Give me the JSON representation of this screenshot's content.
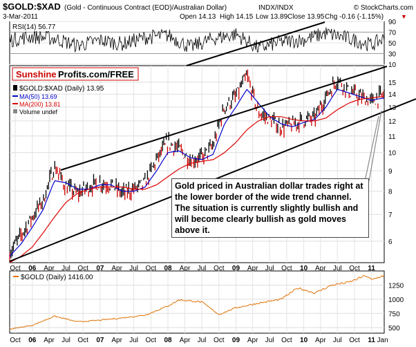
{
  "header": {
    "symbol": "$GOLD:$XAD",
    "description": "(Gold - Continuous Contract (EOD)/Australian Dollar)",
    "exchange": "INDX/INDX",
    "brand": "© StockCharts.com",
    "date": "3-Mar-2011",
    "open": "Open 14.13",
    "high": "High 14.15",
    "low": "Low 13.89",
    "close": "Close 13.95",
    "chg": "Chg -0.16 (-1.15%)",
    "chg_arrow": "▼"
  },
  "rsi_panel": {
    "label": "RSI(14) 56.77",
    "ticks": [
      "90",
      "70",
      "50",
      "30",
      "10"
    ]
  },
  "watermark": {
    "part1": "Sunshine",
    "part2": "Profits.com/FREE"
  },
  "main_legend": {
    "series": "$GOLD:$XAD (Daily) 13.95",
    "ma50": "MA(50) 13.69",
    "ma200": "MA(200) 13.81",
    "volume": "Volume undef"
  },
  "main_ticks": [
    "15",
    "14",
    "13",
    "12",
    "11",
    "10",
    "9",
    "8",
    "7",
    "6"
  ],
  "x_labels": [
    "Oct",
    "06",
    "Apr",
    "Jul",
    "Oct",
    "07",
    "Apr",
    "Jul",
    "Oct",
    "08",
    "Apr",
    "Jul",
    "Oct",
    "09",
    "Apr",
    "Jul",
    "Oct",
    "10",
    "Apr",
    "Jul",
    "Oct",
    "11"
  ],
  "x_labels_bottom": [
    "Oct",
    "06",
    "Apr",
    "Jul",
    "Oct",
    "07",
    "Apr",
    "Jul",
    "Oct",
    "08",
    "Apr",
    "Jul",
    "Oct",
    "09",
    "Apr",
    "Jul",
    "Oct",
    "10",
    "Apr",
    "Jul",
    "Oct",
    "11",
    "Jan"
  ],
  "annotation": "Gold priced in Australian dollar trades right at the lower border of the wide trend channel. The situation is currently slightly bullish and will become clearly bullish as gold moves above it.",
  "gold_panel": {
    "label": "$GOLD (Daily) 1416.00",
    "ticks": [
      "1250",
      "1000",
      "750",
      "500"
    ]
  },
  "colors": {
    "price": "#000000",
    "price_down": "#cc0000",
    "ma50": "#0000cc",
    "ma200": "#dd0000",
    "gold_line": "#e07000",
    "watermark_red": "#cc0000"
  },
  "chart_data": [
    {
      "type": "line",
      "title": "$GOLD:$XAD (Daily)",
      "y_scale": "log",
      "ylim": [
        5.3,
        16.5
      ],
      "x_range": [
        "2005-09",
        "2011-03"
      ],
      "series": [
        {
          "name": "$GOLD:$XAD (Daily) 13.95",
          "x": [
            "2005-09",
            "2005-11",
            "2006-01",
            "2006-03",
            "2006-05",
            "2006-07",
            "2006-09",
            "2006-11",
            "2007-01",
            "2007-03",
            "2007-05",
            "2007-07",
            "2007-09",
            "2007-11",
            "2008-01",
            "2008-03",
            "2008-05",
            "2008-07",
            "2008-09",
            "2008-11",
            "2009-01",
            "2009-03",
            "2009-05",
            "2009-07",
            "2009-09",
            "2009-11",
            "2010-01",
            "2010-03",
            "2010-05",
            "2010-07",
            "2010-09",
            "2010-11",
            "2011-01",
            "2011-03"
          ],
          "values": [
            5.6,
            6.2,
            6.9,
            7.6,
            9.2,
            8.2,
            7.9,
            8.2,
            8.4,
            8.3,
            7.9,
            8.1,
            8.4,
            9.6,
            10.6,
            10.2,
            9.6,
            9.7,
            10.4,
            13.0,
            13.8,
            15.5,
            12.6,
            12.1,
            11.6,
            11.7,
            12.1,
            12.2,
            13.8,
            15.3,
            14.2,
            13.8,
            13.4,
            13.95
          ]
        },
        {
          "name": "MA(50) 13.69",
          "x": [
            "2005-09",
            "2005-11",
            "2006-01",
            "2006-03",
            "2006-05",
            "2006-07",
            "2006-09",
            "2006-11",
            "2007-01",
            "2007-03",
            "2007-05",
            "2007-07",
            "2007-09",
            "2007-11",
            "2008-01",
            "2008-03",
            "2008-05",
            "2008-07",
            "2008-09",
            "2008-11",
            "2009-01",
            "2009-03",
            "2009-05",
            "2009-07",
            "2009-09",
            "2009-11",
            "2010-01",
            "2010-03",
            "2010-05",
            "2010-07",
            "2010-09",
            "2010-11",
            "2011-01",
            "2011-03"
          ],
          "values": [
            5.5,
            5.9,
            6.5,
            7.2,
            8.5,
            8.4,
            8.1,
            8.1,
            8.3,
            8.3,
            8.0,
            8.0,
            8.2,
            9.0,
            10.0,
            10.1,
            9.7,
            9.6,
            9.9,
            11.8,
            13.0,
            14.4,
            13.3,
            12.3,
            11.8,
            11.6,
            11.9,
            12.1,
            13.0,
            14.4,
            14.1,
            13.8,
            13.5,
            13.69
          ]
        },
        {
          "name": "MA(200) 13.81",
          "x": [
            "2005-09",
            "2005-11",
            "2006-01",
            "2006-03",
            "2006-05",
            "2006-07",
            "2006-09",
            "2006-11",
            "2007-01",
            "2007-03",
            "2007-05",
            "2007-07",
            "2007-09",
            "2007-11",
            "2008-01",
            "2008-03",
            "2008-05",
            "2008-07",
            "2008-09",
            "2008-11",
            "2009-01",
            "2009-03",
            "2009-05",
            "2009-07",
            "2009-09",
            "2009-11",
            "2010-01",
            "2010-03",
            "2010-05",
            "2010-07",
            "2010-09",
            "2010-11",
            "2011-01",
            "2011-03"
          ],
          "values": [
            5.3,
            5.5,
            5.8,
            6.3,
            6.9,
            7.5,
            7.9,
            8.1,
            8.2,
            8.2,
            8.2,
            8.1,
            8.1,
            8.3,
            8.7,
            9.1,
            9.4,
            9.5,
            9.6,
            10.0,
            10.6,
            11.4,
            12.0,
            12.3,
            12.3,
            12.1,
            12.0,
            12.0,
            12.2,
            12.8,
            13.3,
            13.6,
            13.7,
            13.81
          ]
        }
      ]
    },
    {
      "type": "line",
      "title": "RSI(14)",
      "ylim": [
        10,
        90
      ],
      "series": [
        {
          "name": "RSI(14) 56.77",
          "x": [
            "2005-09",
            "2006-01",
            "2006-05",
            "2006-09",
            "2007-01",
            "2007-05",
            "2007-09",
            "2008-01",
            "2008-05",
            "2008-09",
            "2009-01",
            "2009-05",
            "2009-09",
            "2010-01",
            "2010-05",
            "2010-09",
            "2011-01",
            "2011-03"
          ],
          "values": [
            55,
            62,
            58,
            45,
            55,
            48,
            60,
            64,
            42,
            58,
            66,
            40,
            52,
            56,
            68,
            58,
            46,
            56.77
          ]
        }
      ]
    },
    {
      "type": "line",
      "title": "$GOLD (Daily)",
      "ylim": [
        400,
        1500
      ],
      "series": [
        {
          "name": "$GOLD (Daily) 1416.00",
          "x": [
            "2005-09",
            "2006-01",
            "2006-05",
            "2006-09",
            "2007-01",
            "2007-05",
            "2007-09",
            "2008-01",
            "2008-03",
            "2008-07",
            "2008-10",
            "2009-01",
            "2009-05",
            "2009-09",
            "2009-12",
            "2010-03",
            "2010-06",
            "2010-09",
            "2010-12",
            "2011-01",
            "2011-03"
          ],
          "values": [
            470,
            540,
            700,
            600,
            630,
            670,
            720,
            880,
            990,
            950,
            730,
            850,
            930,
            1000,
            1200,
            1110,
            1250,
            1300,
            1420,
            1340,
            1416
          ]
        }
      ]
    }
  ]
}
